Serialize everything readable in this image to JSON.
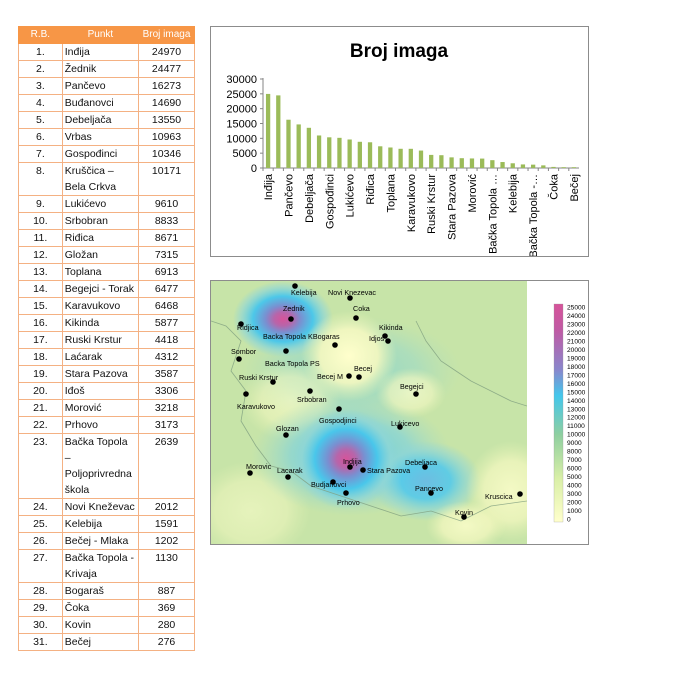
{
  "table": {
    "headers": [
      "R.B.",
      "Punkt",
      "Broj imaga"
    ],
    "rows": [
      {
        "rb": "1.",
        "name": "Inđija",
        "value": "24970"
      },
      {
        "rb": "2.",
        "name": "Žednik",
        "value": "24477"
      },
      {
        "rb": "3.",
        "name": "Pančevo",
        "value": "16273"
      },
      {
        "rb": "4.",
        "name": "Buđanovci",
        "value": "14690"
      },
      {
        "rb": "5.",
        "name": "Debeljača",
        "value": "13550"
      },
      {
        "rb": "6.",
        "name": "Vrbas",
        "value": "10963"
      },
      {
        "rb": "7.",
        "name": "Gospođinci",
        "value": "10346"
      },
      {
        "rb": "8.",
        "name": "Kruščica – Bela Crkva",
        "value": "10171"
      },
      {
        "rb": "9.",
        "name": "Lukićevo",
        "value": "9610"
      },
      {
        "rb": "10.",
        "name": "Srbobran",
        "value": "8833"
      },
      {
        "rb": "11.",
        "name": "Riđica",
        "value": "8671"
      },
      {
        "rb": "12.",
        "name": "Gložan",
        "value": "7315"
      },
      {
        "rb": "13.",
        "name": "Toplana",
        "value": "6913"
      },
      {
        "rb": "14.",
        "name": "Begejci - Torak",
        "value": "6477"
      },
      {
        "rb": "15.",
        "name": "Karavukovo",
        "value": "6468"
      },
      {
        "rb": "16.",
        "name": "Kikinda",
        "value": "5877"
      },
      {
        "rb": "17.",
        "name": "Ruski Krstur",
        "value": "4418"
      },
      {
        "rb": "18.",
        "name": "Laćarak",
        "value": "4312"
      },
      {
        "rb": "19.",
        "name": "Stara Pazova",
        "value": "3587"
      },
      {
        "rb": "20.",
        "name": "Iđoš",
        "value": "3306"
      },
      {
        "rb": "21.",
        "name": "Morović",
        "value": "3218"
      },
      {
        "rb": "22.",
        "name": "Prhovo",
        "value": "3173"
      },
      {
        "rb": "23.",
        "name": "Bačka Topola – Poljoprivredna škola",
        "value": "2639"
      },
      {
        "rb": "24.",
        "name": "Novi Kneževac",
        "value": "2012"
      },
      {
        "rb": "25.",
        "name": "Kelebija",
        "value": "1591"
      },
      {
        "rb": "26.",
        "name": "Bečej - Mlaka",
        "value": "1202"
      },
      {
        "rb": "27.",
        "name": "Bačka Topola - Krivaja",
        "value": "1130"
      },
      {
        "rb": "28.",
        "name": "Bogaraš",
        "value": "887"
      },
      {
        "rb": "29.",
        "name": "Čoka",
        "value": "369"
      },
      {
        "rb": "30.",
        "name": "Kovin",
        "value": "280"
      },
      {
        "rb": "31.",
        "name": "Bečej",
        "value": "276"
      }
    ]
  },
  "chart_data": [
    {
      "type": "bar",
      "title": "Broj imaga",
      "xlabel": "",
      "ylabel": "",
      "ylim": [
        0,
        30000
      ],
      "yticks": [
        "0",
        "5000",
        "10000",
        "15000",
        "20000",
        "25000",
        "30000"
      ],
      "grid": false,
      "legend": "none",
      "bar_color": "#9bbb59",
      "values": [
        24970,
        24477,
        16273,
        14690,
        13550,
        10963,
        10346,
        10171,
        9610,
        8833,
        8671,
        7315,
        6913,
        6477,
        6468,
        5877,
        4418,
        4312,
        3587,
        3306,
        3218,
        3173,
        2639,
        2012,
        1591,
        1202,
        1130,
        887,
        369,
        280,
        276
      ],
      "visible_labels": [
        {
          "index": 0,
          "label": "Inđija"
        },
        {
          "index": 2,
          "label": "Pančevo"
        },
        {
          "index": 4,
          "label": "Debeljača"
        },
        {
          "index": 6,
          "label": "Gospođinci"
        },
        {
          "index": 8,
          "label": "Lukićevo"
        },
        {
          "index": 10,
          "label": "Riđica"
        },
        {
          "index": 12,
          "label": "Toplana"
        },
        {
          "index": 14,
          "label": "Karavukovo"
        },
        {
          "index": 16,
          "label": "Ruski Krstur"
        },
        {
          "index": 18,
          "label": "Stara Pazova"
        },
        {
          "index": 20,
          "label": "Morović"
        },
        {
          "index": 22,
          "label": "Bačka Topola …"
        },
        {
          "index": 24,
          "label": "Kelebija"
        },
        {
          "index": 26,
          "label": "Bačka Topola -…"
        },
        {
          "index": 28,
          "label": "Čoka"
        },
        {
          "index": 30,
          "label": "Bečej"
        }
      ]
    },
    {
      "type": "heatmap",
      "colorbar_ticks": [
        "25000",
        "24000",
        "23000",
        "22000",
        "21000",
        "20000",
        "19000",
        "18000",
        "17000",
        "16000",
        "15000",
        "14000",
        "13000",
        "12000",
        "11000",
        "10000",
        "9000",
        "8000",
        "7000",
        "6000",
        "5000",
        "4000",
        "3000",
        "2000",
        "1000",
        "0"
      ],
      "colorbar_colors": [
        "#d6549a",
        "#c05aa4",
        "#6f8fcf",
        "#43c7ec",
        "#8fcfa0",
        "#d9efa7",
        "#ffffcc"
      ],
      "hotspots": [
        {
          "name": "Indjija",
          "value": 24970
        },
        {
          "name": "Zednik",
          "value": 24477
        },
        {
          "name": "Pancevo",
          "value": 16273
        },
        {
          "name": "Budjanovci",
          "value": 14690
        },
        {
          "name": "Debeljaca",
          "value": 13550
        },
        {
          "name": "Kruscica",
          "value": 10171
        },
        {
          "name": "Lukicevo",
          "value": 9610
        },
        {
          "name": "Srbobran",
          "value": 8833
        },
        {
          "name": "Gospodjinci",
          "value": 10346
        }
      ],
      "points": [
        {
          "label": "Kelebija"
        },
        {
          "label": "Novi Knezevac"
        },
        {
          "label": "Zednik"
        },
        {
          "label": "Coka"
        },
        {
          "label": "Ridjica"
        },
        {
          "label": "Kikinda"
        },
        {
          "label": "Backa Topola KBogaras"
        },
        {
          "label": "Idjos"
        },
        {
          "label": "Sombor"
        },
        {
          "label": "Backa Topola PS"
        },
        {
          "label": "Becej"
        },
        {
          "label": "Ruski Krstur"
        },
        {
          "label": "Becej M"
        },
        {
          "label": "Begejci"
        },
        {
          "label": "Srbobran"
        },
        {
          "label": "Karavukovo"
        },
        {
          "label": "Gospodjinci"
        },
        {
          "label": "Lukicevo"
        },
        {
          "label": "Glozan"
        },
        {
          "label": "Indjija"
        },
        {
          "label": "Debeljaca"
        },
        {
          "label": "Morovic"
        },
        {
          "label": "Lacarak"
        },
        {
          "label": "Stara Pazova"
        },
        {
          "label": "Budjanovci"
        },
        {
          "label": "Pancevo"
        },
        {
          "label": "Kruscica"
        },
        {
          "label": "Prhovo"
        },
        {
          "label": "Kovin"
        }
      ]
    }
  ]
}
